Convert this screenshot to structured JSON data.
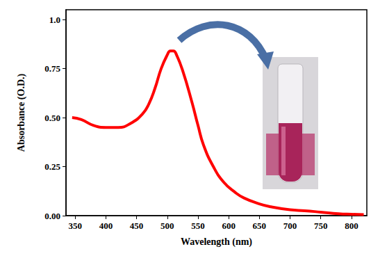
{
  "chart_data": {
    "type": "line",
    "x_label": "Wavelength (nm)",
    "y_label": "Absorbance (O.D.)",
    "x": [
      345,
      360,
      380,
      400,
      420,
      440,
      460,
      470,
      480,
      490,
      500,
      505,
      510,
      515,
      525,
      540,
      550,
      559,
      575,
      592,
      610,
      625,
      650,
      669,
      700,
      724,
      750,
      779,
      800,
      820
    ],
    "values": [
      0.5,
      0.49,
      0.46,
      0.45,
      0.45,
      0.47,
      0.52,
      0.57,
      0.65,
      0.75,
      0.82,
      0.84,
      0.84,
      0.82,
      0.74,
      0.58,
      0.46,
      0.36,
      0.25,
      0.17,
      0.12,
      0.09,
      0.06,
      0.045,
      0.03,
      0.025,
      0.018,
      0.01,
      0.007,
      0.005
    ],
    "color": "#ff0000",
    "xlim": [
      335,
      825
    ],
    "xticks": [
      350,
      400,
      450,
      500,
      550,
      600,
      650,
      700,
      750,
      800
    ],
    "ylim": [
      0,
      1.05
    ],
    "yticks": [
      {
        "value": 0,
        "label": "0.00"
      },
      {
        "value": 0.25,
        "label": "0.25"
      },
      {
        "value": 0.5,
        "label": "0.50"
      },
      {
        "value": 0.75,
        "label": "0.75"
      },
      {
        "value": 1.0,
        "label": "1.0"
      }
    ],
    "grid": false
  }
}
